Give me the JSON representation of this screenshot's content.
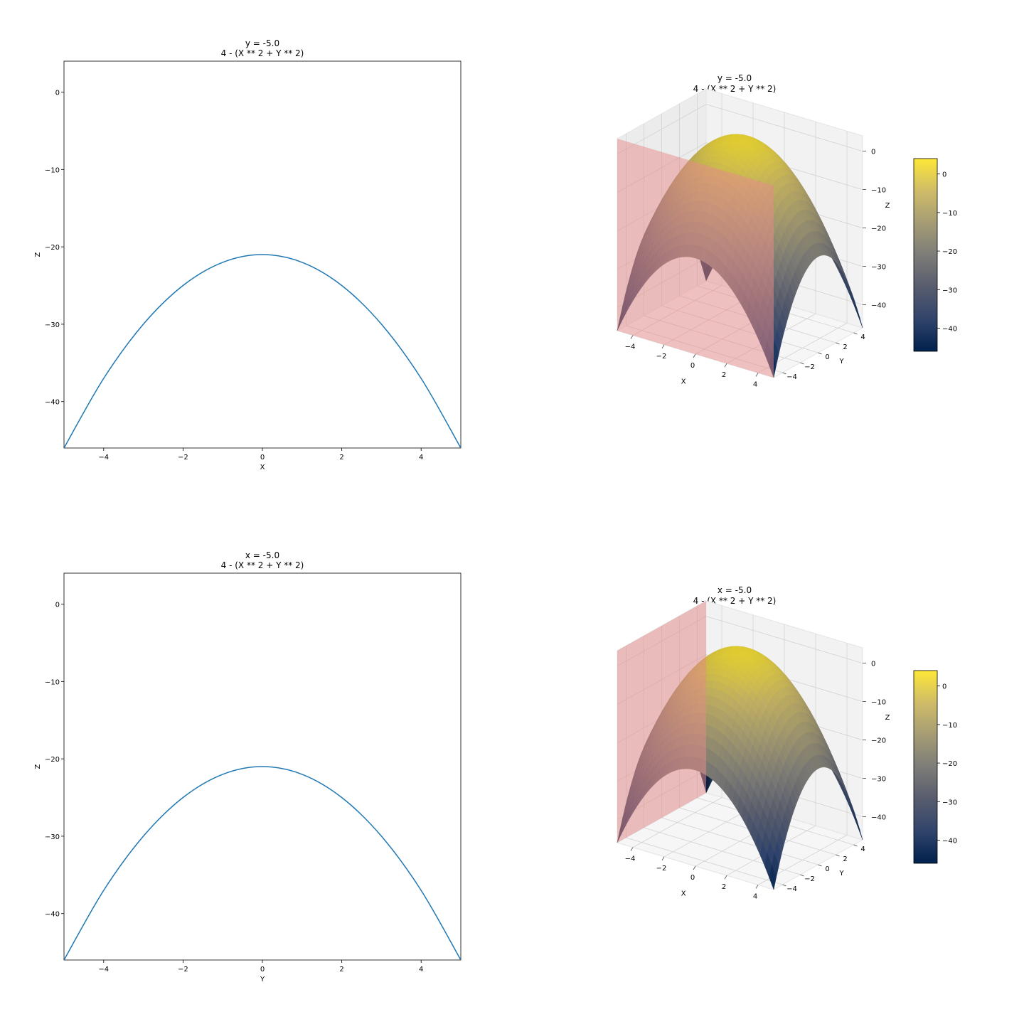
{
  "colors": {
    "line": "#1f77b4",
    "plane": "#e88a8a",
    "colormap": [
      "#00204c",
      "#31446b",
      "#575c6e",
      "#7d7c78",
      "#a59c74",
      "#cfbc68",
      "#fde737"
    ],
    "pane": "#f2f2f2",
    "grid": "#d2d2d2"
  },
  "chart_data": [
    {
      "type": "line",
      "title_line1": "y = -5.0",
      "title_line2": "4 - (X ** 2 + Y ** 2)",
      "xlabel": "X",
      "ylabel": "Z",
      "xlim": [
        -5,
        5
      ],
      "ylim": [
        -46,
        4
      ],
      "xticks": [
        -4,
        -2,
        0,
        2,
        4
      ],
      "yticks": [
        0,
        -10,
        -20,
        -30,
        -40
      ],
      "fixed": {
        "y": -5.0
      },
      "function": "4 - (X ** 2 + Y ** 2)",
      "series": [
        {
          "x": [
            -5,
            -4,
            -3,
            -2,
            -1,
            0,
            1,
            2,
            3,
            4,
            5
          ],
          "values": [
            -46,
            -37,
            -30,
            -25,
            -22,
            -21,
            -22,
            -25,
            -30,
            -37,
            -46
          ]
        }
      ]
    },
    {
      "type": "surface",
      "title_line1": "y = -5.0",
      "title_line2": "4 - (X ** 2 + Y ** 2)",
      "xlabel": "X",
      "ylabel": "Y",
      "zlabel": "Z",
      "xlim": [
        -5,
        5
      ],
      "ylim": [
        -5,
        5
      ],
      "zlim": [
        -46,
        4
      ],
      "xticks": [
        -4,
        -2,
        0,
        2,
        4
      ],
      "yticks": [
        -4,
        -2,
        0,
        2,
        4
      ],
      "zticks": [
        0,
        -10,
        -20,
        -30,
        -40
      ],
      "colorbar": {
        "ticks": [
          0,
          -10,
          -20,
          -30,
          -40
        ],
        "range": [
          -46,
          4
        ]
      },
      "plane": {
        "axis": "y",
        "value": -5.0
      }
    },
    {
      "type": "line",
      "title_line1": "x = -5.0",
      "title_line2": "4 - (X ** 2 + Y ** 2)",
      "xlabel": "Y",
      "ylabel": "Z",
      "xlim": [
        -5,
        5
      ],
      "ylim": [
        -46,
        4
      ],
      "xticks": [
        -4,
        -2,
        0,
        2,
        4
      ],
      "yticks": [
        0,
        -10,
        -20,
        -30,
        -40
      ],
      "fixed": {
        "x": -5.0
      },
      "function": "4 - (X ** 2 + Y ** 2)",
      "series": [
        {
          "x": [
            -5,
            -4,
            -3,
            -2,
            -1,
            0,
            1,
            2,
            3,
            4,
            5
          ],
          "values": [
            -46,
            -37,
            -30,
            -25,
            -22,
            -21,
            -22,
            -25,
            -30,
            -37,
            -46
          ]
        }
      ]
    },
    {
      "type": "surface",
      "title_line1": "x = -5.0",
      "title_line2": "4 - (X ** 2 + Y ** 2)",
      "xlabel": "X",
      "ylabel": "Y",
      "zlabel": "Z",
      "xlim": [
        -5,
        5
      ],
      "ylim": [
        -5,
        5
      ],
      "zlim": [
        -46,
        4
      ],
      "xticks": [
        -4,
        -2,
        0,
        2,
        4
      ],
      "yticks": [
        -4,
        -2,
        0,
        2,
        4
      ],
      "zticks": [
        0,
        -10,
        -20,
        -30,
        -40
      ],
      "colorbar": {
        "ticks": [
          0,
          -10,
          -20,
          -30,
          -40
        ],
        "range": [
          -46,
          4
        ]
      },
      "plane": {
        "axis": "x",
        "value": -5.0
      }
    }
  ]
}
